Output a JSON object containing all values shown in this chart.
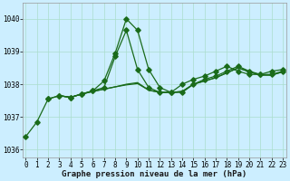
{
  "title": "Graphe pression niveau de la mer (hPa)",
  "background_color": "#cceeff",
  "grid_color": "#aaddcc",
  "line_color": "#1a6b1a",
  "ylim": [
    1035.75,
    1040.5
  ],
  "yticks": [
    1036,
    1037,
    1038,
    1039,
    1040
  ],
  "xlim": [
    0,
    23
  ],
  "xticks": [
    0,
    1,
    2,
    3,
    4,
    5,
    6,
    7,
    8,
    9,
    10,
    11,
    12,
    13,
    14,
    15,
    16,
    17,
    18,
    19,
    20,
    21,
    22,
    23
  ],
  "line1_x": [
    0,
    1,
    2,
    3,
    4,
    5,
    6,
    7,
    8,
    9,
    10,
    11,
    12,
    13,
    14,
    15,
    16,
    17,
    18,
    19,
    20,
    21,
    22,
    23
  ],
  "line1_y": [
    1036.4,
    1036.85,
    1037.55,
    1037.65,
    1037.6,
    1037.7,
    1037.8,
    1038.1,
    1038.95,
    1040.0,
    1039.65,
    1038.45,
    1037.9,
    1037.75,
    1037.75,
    1038.0,
    1038.15,
    1038.25,
    1038.4,
    1038.55,
    1038.4,
    1038.3,
    1038.3,
    1038.4
  ],
  "line1_markers": [
    0,
    1,
    2,
    3,
    4,
    5,
    6,
    7,
    8,
    9,
    10,
    11,
    12,
    13,
    14,
    15,
    16,
    17,
    18,
    19,
    20,
    21,
    22,
    23
  ],
  "line2_x": [
    2,
    3,
    4,
    5,
    6,
    7,
    8,
    9,
    10,
    11,
    12,
    13,
    14,
    15,
    16,
    17,
    18,
    19,
    20,
    21,
    22,
    23
  ],
  "line2_y": [
    1037.55,
    1037.65,
    1037.6,
    1037.7,
    1037.8,
    1037.9,
    1038.85,
    1039.65,
    1038.45,
    1037.9,
    1037.75,
    1037.75,
    1038.0,
    1038.15,
    1038.25,
    1038.4,
    1038.55,
    1038.4,
    1038.3,
    1038.3,
    1038.4,
    1038.45
  ],
  "line2_has_markers": true,
  "line3_x": [
    3,
    4,
    5,
    6,
    7,
    8,
    9,
    10,
    11,
    12,
    13,
    14,
    15,
    16,
    17,
    18,
    19,
    20,
    21,
    22,
    23
  ],
  "line3_y": [
    1037.65,
    1037.6,
    1037.7,
    1037.78,
    1037.85,
    1037.92,
    1038.0,
    1038.05,
    1037.82,
    1037.75,
    1037.75,
    1037.78,
    1038.0,
    1038.1,
    1038.2,
    1038.35,
    1038.5,
    1038.38,
    1038.28,
    1038.28,
    1038.38
  ],
  "line3_has_markers": false,
  "line4_x": [
    3,
    4,
    5,
    6,
    7,
    8,
    9,
    10,
    11,
    12,
    13,
    14,
    15,
    16,
    17,
    18,
    19,
    20,
    21,
    22,
    23
  ],
  "line4_y": [
    1037.65,
    1037.6,
    1037.7,
    1037.78,
    1037.85,
    1037.92,
    1037.98,
    1038.02,
    1037.82,
    1037.75,
    1037.75,
    1037.78,
    1038.0,
    1038.1,
    1038.2,
    1038.35,
    1038.5,
    1038.38,
    1038.28,
    1038.28,
    1038.38
  ],
  "line4_has_markers": false,
  "ylabel_color": "#1a1a1a",
  "tick_fontsize": 5.5,
  "xlabel_fontsize": 6.5
}
